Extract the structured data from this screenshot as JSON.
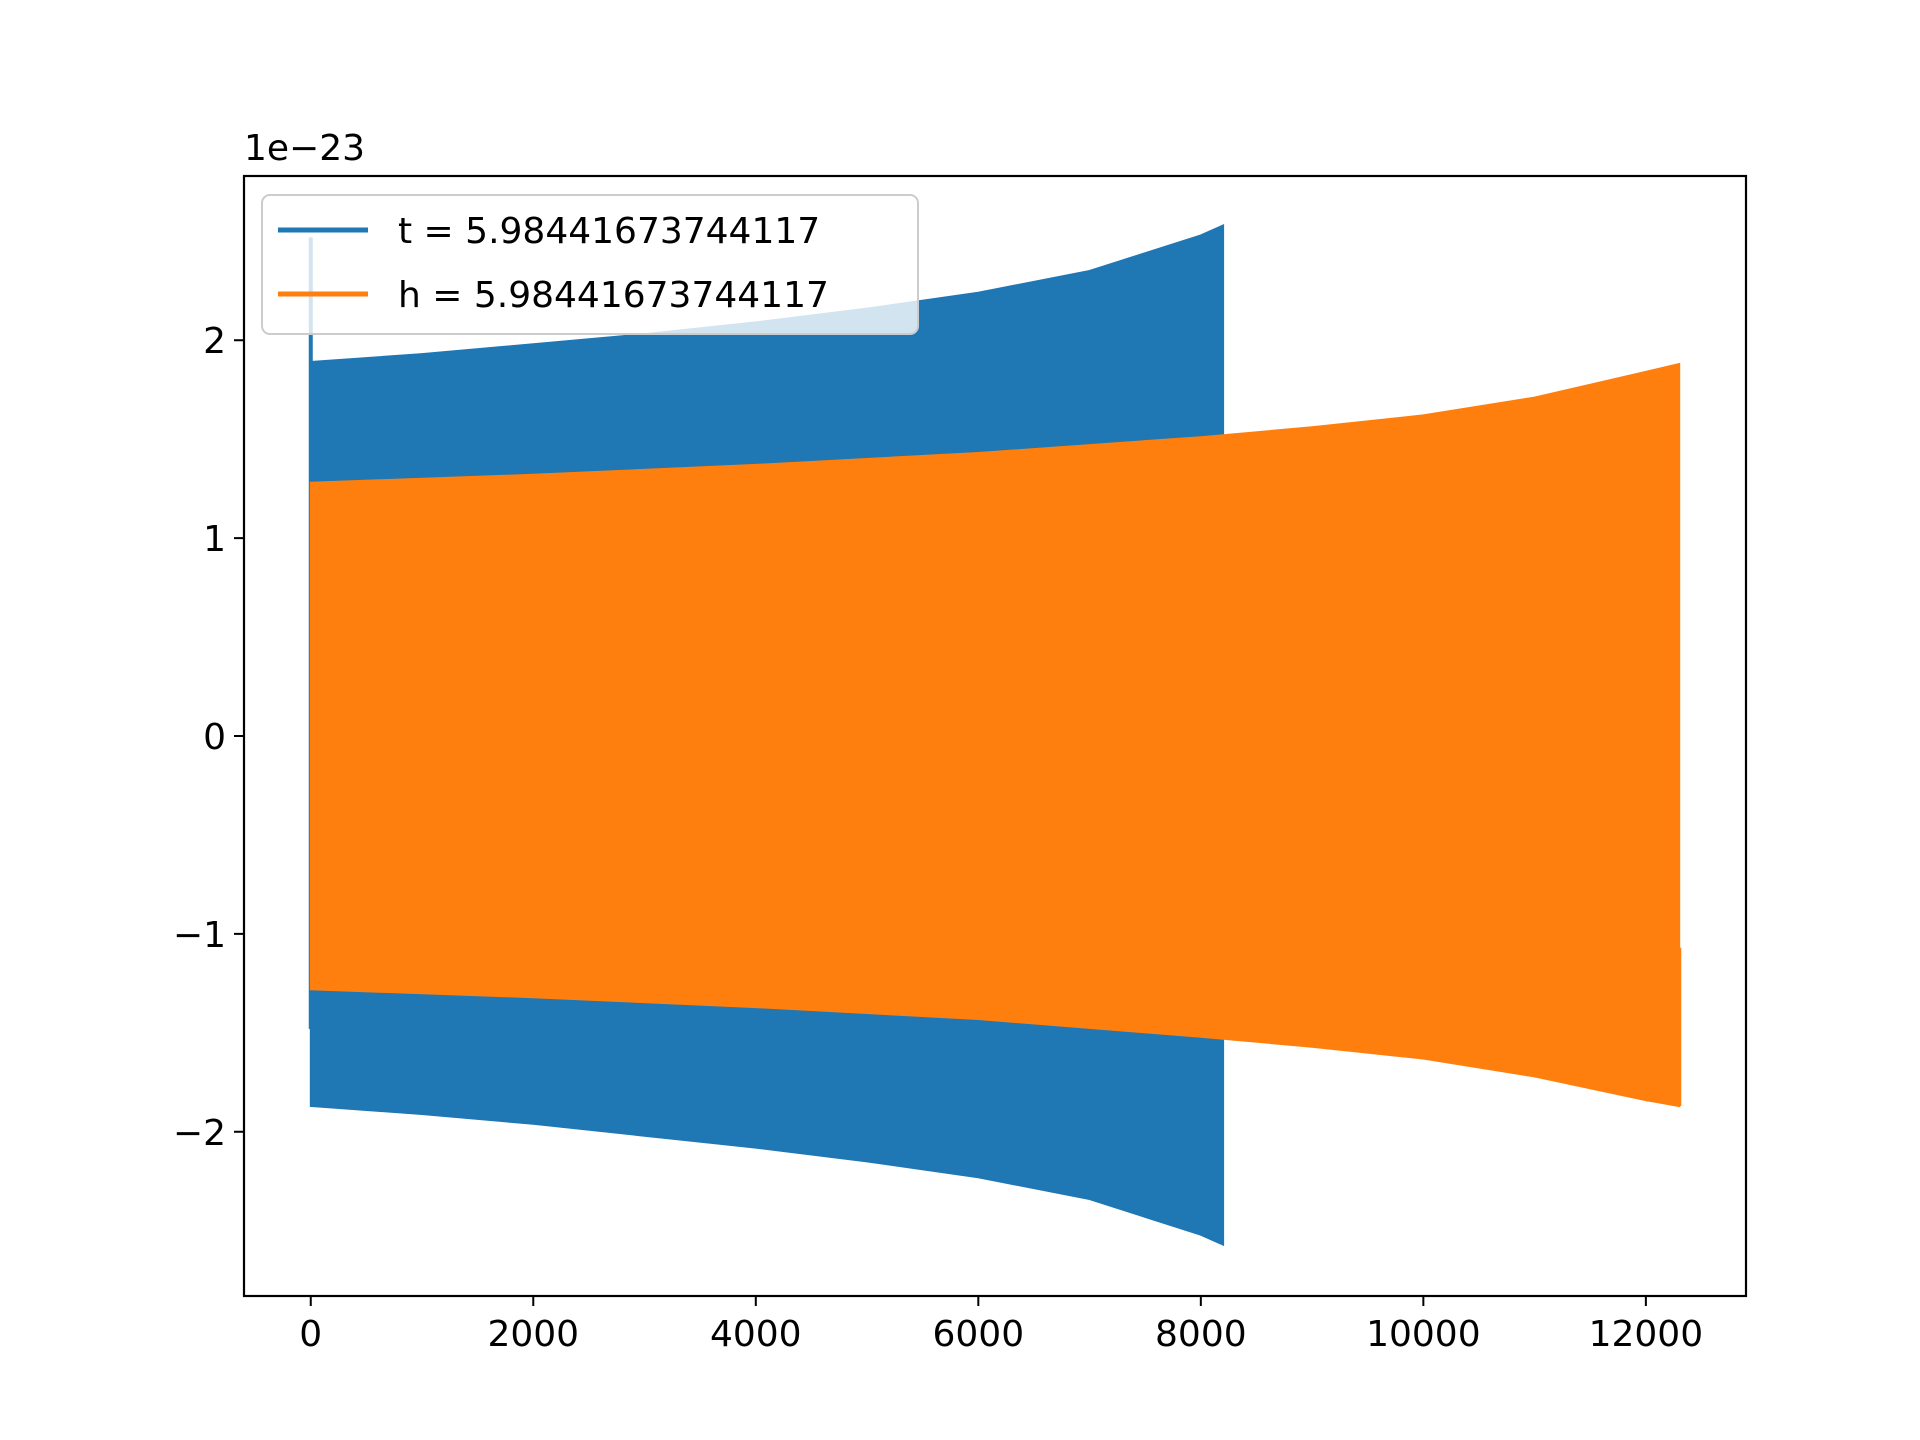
{
  "chart_data": {
    "type": "line",
    "title": "",
    "xlabel": "",
    "ylabel": "",
    "y_offset_label": "1e−23",
    "xlim": [
      -600,
      12900
    ],
    "ylim": [
      -2.83,
      2.83
    ],
    "xticks": [
      0,
      2000,
      4000,
      6000,
      8000,
      10000,
      12000
    ],
    "xtick_labels": [
      "0",
      "2000",
      "4000",
      "6000",
      "8000",
      "10000",
      "12000"
    ],
    "yticks": [
      -2,
      -1,
      0,
      1,
      2
    ],
    "ytick_labels": [
      "−2",
      "−1",
      "0",
      "1",
      "2"
    ],
    "grid": false,
    "legend_position": "upper-left",
    "series": [
      {
        "name": "t = 5.98441673744117",
        "color": "#1f77b4",
        "envelope_x": [
          0,
          1000,
          2000,
          3000,
          4000,
          5000,
          6000,
          7000,
          8000,
          8200
        ],
        "envelope_upper": [
          1.89,
          1.93,
          1.98,
          2.03,
          2.09,
          2.16,
          2.24,
          2.35,
          2.53,
          2.58
        ],
        "envelope_lower": [
          -1.87,
          -1.91,
          -1.96,
          -2.02,
          -2.08,
          -2.15,
          -2.23,
          -2.34,
          -2.52,
          -2.57
        ],
        "initial_spike": {
          "x": 0,
          "max": 2.52,
          "min": -1.48
        }
      },
      {
        "name": "h = 5.98441673744117",
        "color": "#ff7f0e",
        "envelope_x": [
          0,
          2000,
          4000,
          6000,
          8000,
          9000,
          10000,
          11000,
          12000,
          12300
        ],
        "envelope_upper": [
          1.28,
          1.32,
          1.37,
          1.43,
          1.51,
          1.56,
          1.62,
          1.71,
          1.84,
          1.88
        ],
        "envelope_lower": [
          -1.28,
          -1.32,
          -1.37,
          -1.43,
          -1.52,
          -1.57,
          -1.63,
          -1.72,
          -1.84,
          -1.87
        ],
        "end_value": -1.07
      }
    ]
  }
}
